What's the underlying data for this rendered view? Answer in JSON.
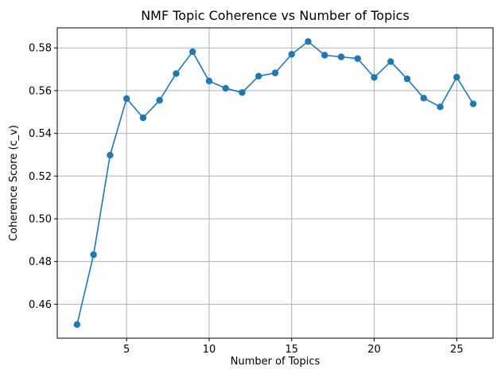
{
  "chart_data": {
    "type": "line",
    "title": "NMF Topic Coherence vs Number of Topics",
    "xlabel": "Number of Topics",
    "ylabel": "Coherence Score (c_v)",
    "x": [
      2,
      3,
      4,
      5,
      6,
      7,
      8,
      9,
      10,
      11,
      12,
      13,
      14,
      15,
      16,
      17,
      18,
      19,
      20,
      21,
      22,
      23,
      24,
      25,
      26
    ],
    "series": [
      {
        "values": [
          0.4505,
          0.4832,
          0.5298,
          0.5563,
          0.5473,
          0.5555,
          0.568,
          0.5782,
          0.5645,
          0.5611,
          0.5591,
          0.5668,
          0.5683,
          0.577,
          0.583,
          0.5766,
          0.5758,
          0.575,
          0.5662,
          0.5736,
          0.5655,
          0.5565,
          0.5524,
          0.5663,
          0.5538
        ],
        "color": "#1f77b4",
        "marker": "circle"
      }
    ],
    "xlim": [
      0.8,
      27.2
    ],
    "ylim": [
      0.4441,
      0.5894
    ],
    "xticks": [
      5,
      10,
      15,
      20,
      25
    ],
    "yticks": [
      0.46,
      0.48,
      0.5,
      0.52,
      0.54,
      0.56,
      0.58
    ],
    "xtick_labels": [
      "5",
      "10",
      "15",
      "20",
      "25"
    ],
    "ytick_labels": [
      "0.46",
      "0.48",
      "0.50",
      "0.52",
      "0.54",
      "0.56",
      "0.58"
    ],
    "grid": true,
    "grid_color": "#b0b0b0"
  }
}
